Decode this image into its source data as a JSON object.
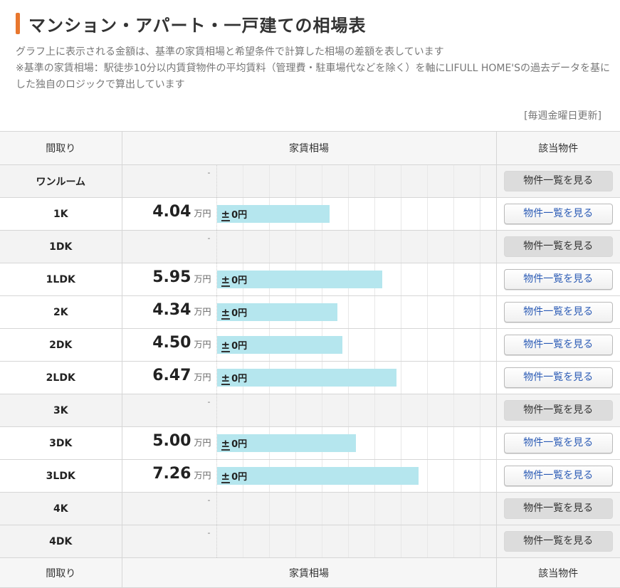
{
  "heading": {
    "title": "マンション・アパート・一戸建ての相場表",
    "desc_line1": "グラフ上に表示される金額は、基準の家賃相場と希望条件で計算した相場の差額を表しています",
    "desc_line2": "※基準の家賃相場：駅徒歩10分以内賃貸物件の平均賃料（管理費・駐車場代などを除く）を軸にLIFULL HOME'Sの過去データを基にした独自のロジックで算出しています",
    "updated": "[毎週金曜日更新]"
  },
  "table": {
    "headers": {
      "layout": "間取り",
      "rent": "家賃相場",
      "listings": "該当物件"
    },
    "unit": "万円",
    "no_data": "-",
    "diff_prefix": "±",
    "diff_value": "0円",
    "button_label": "物件一覧を見る",
    "scale_max": 10,
    "rows": [
      {
        "layout": "ワンルーム",
        "rent": null,
        "rent_text": ""
      },
      {
        "layout": "1K",
        "rent": 4.04,
        "rent_text": "4.04"
      },
      {
        "layout": "1DK",
        "rent": null,
        "rent_text": ""
      },
      {
        "layout": "1LDK",
        "rent": 5.95,
        "rent_text": "5.95"
      },
      {
        "layout": "2K",
        "rent": 4.34,
        "rent_text": "4.34"
      },
      {
        "layout": "2DK",
        "rent": 4.5,
        "rent_text": "4.50"
      },
      {
        "layout": "2LDK",
        "rent": 6.47,
        "rent_text": "6.47"
      },
      {
        "layout": "3K",
        "rent": null,
        "rent_text": ""
      },
      {
        "layout": "3DK",
        "rent": 5.0,
        "rent_text": "5.00"
      },
      {
        "layout": "3LDK",
        "rent": 7.26,
        "rent_text": "7.26"
      },
      {
        "layout": "4K",
        "rent": null,
        "rent_text": ""
      },
      {
        "layout": "4DK",
        "rent": null,
        "rent_text": ""
      }
    ]
  },
  "colors": {
    "accent": "#e8772e",
    "bar": "#b5e6ee",
    "link": "#2b5bb5"
  }
}
